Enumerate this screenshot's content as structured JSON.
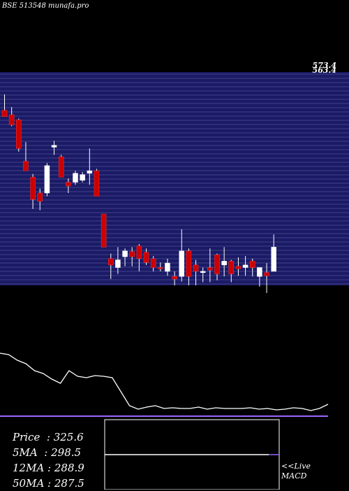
{
  "header": {
    "ticker": "BSE 513548",
    "site": "munafa.pro"
  },
  "stats": {
    "price_label": "Price",
    "price": "325.6",
    "ma5_label": "5MA",
    "ma5": "298.5",
    "ma12_label": "12MA",
    "ma12": "288.9",
    "ma50_label": "50MA",
    "ma50": "287.5"
  },
  "macd_label": {
    "line1": "<<Live",
    "line2": "MACD"
  },
  "colors": {
    "background": "#000000",
    "price_band": "#1a1a66",
    "grid_line": "#6a6aa8",
    "up_candle": "#ffffff",
    "down_candle": "#cc0000",
    "indicator_line": "#ffffff",
    "ma_line": "#9966ff",
    "macd_box_border": "#ffffff"
  },
  "chart_data": {
    "type": "candlestick",
    "y_scale": "price",
    "ylim": [
      240,
      575
    ],
    "top_labels": [
      "573.4",
      "563.4"
    ],
    "candles": [
      {
        "o": 515,
        "h": 540,
        "l": 505,
        "c": 505,
        "dir": "down"
      },
      {
        "o": 508,
        "h": 520,
        "l": 490,
        "c": 492,
        "dir": "down"
      },
      {
        "o": 500,
        "h": 502,
        "l": 450,
        "c": 455,
        "dir": "down"
      },
      {
        "o": 435,
        "h": 465,
        "l": 420,
        "c": 420,
        "dir": "down"
      },
      {
        "o": 410,
        "h": 415,
        "l": 360,
        "c": 375,
        "dir": "down"
      },
      {
        "o": 385,
        "h": 392,
        "l": 358,
        "c": 372,
        "dir": "down"
      },
      {
        "o": 385,
        "h": 432,
        "l": 380,
        "c": 428,
        "dir": "up"
      },
      {
        "o": 457,
        "h": 467,
        "l": 445,
        "c": 460,
        "dir": "up"
      },
      {
        "o": 442,
        "h": 445,
        "l": 410,
        "c": 410,
        "dir": "down"
      },
      {
        "o": 402,
        "h": 408,
        "l": 385,
        "c": 396,
        "dir": "down"
      },
      {
        "o": 402,
        "h": 420,
        "l": 398,
        "c": 416,
        "dir": "up"
      },
      {
        "o": 405,
        "h": 418,
        "l": 402,
        "c": 414,
        "dir": "up"
      },
      {
        "o": 420,
        "h": 455,
        "l": 398,
        "c": 416,
        "dir": "up"
      },
      {
        "o": 420,
        "h": 423,
        "l": 380,
        "c": 380,
        "dir": "down"
      },
      {
        "o": 352,
        "h": 352,
        "l": 300,
        "c": 300,
        "dir": "down"
      },
      {
        "o": 282,
        "h": 290,
        "l": 250,
        "c": 272,
        "dir": "down"
      },
      {
        "o": 268,
        "h": 300,
        "l": 258,
        "c": 280,
        "dir": "up"
      },
      {
        "o": 285,
        "h": 298,
        "l": 270,
        "c": 294,
        "dir": "up"
      },
      {
        "o": 293,
        "h": 300,
        "l": 270,
        "c": 285,
        "dir": "down"
      },
      {
        "o": 302,
        "h": 305,
        "l": 262,
        "c": 282,
        "dir": "down"
      },
      {
        "o": 292,
        "h": 298,
        "l": 272,
        "c": 276,
        "dir": "down"
      },
      {
        "o": 282,
        "h": 286,
        "l": 262,
        "c": 268,
        "dir": "down"
      },
      {
        "o": 266,
        "h": 276,
        "l": 262,
        "c": 268,
        "dir": "down"
      },
      {
        "o": 262,
        "h": 282,
        "l": 255,
        "c": 275,
        "dir": "up"
      },
      {
        "o": 254,
        "h": 262,
        "l": 240,
        "c": 250,
        "dir": "down"
      },
      {
        "o": 254,
        "h": 328,
        "l": 246,
        "c": 294,
        "dir": "up"
      },
      {
        "o": 294,
        "h": 298,
        "l": 240,
        "c": 254,
        "dir": "down"
      },
      {
        "o": 262,
        "h": 280,
        "l": 240,
        "c": 272,
        "dir": "down"
      },
      {
        "o": 260,
        "h": 268,
        "l": 245,
        "c": 262,
        "dir": "up"
      },
      {
        "o": 268,
        "h": 298,
        "l": 245,
        "c": 264,
        "dir": "down"
      },
      {
        "o": 288,
        "h": 290,
        "l": 248,
        "c": 258,
        "dir": "down"
      },
      {
        "o": 272,
        "h": 300,
        "l": 254,
        "c": 278,
        "dir": "up"
      },
      {
        "o": 278,
        "h": 280,
        "l": 245,
        "c": 258,
        "dir": "down"
      },
      {
        "o": 266,
        "h": 284,
        "l": 255,
        "c": 270,
        "dir": "down"
      },
      {
        "o": 268,
        "h": 286,
        "l": 255,
        "c": 272,
        "dir": "up"
      },
      {
        "o": 278,
        "h": 282,
        "l": 254,
        "c": 268,
        "dir": "down"
      },
      {
        "o": 268,
        "h": 268,
        "l": 238,
        "c": 254,
        "dir": "up"
      },
      {
        "o": 260,
        "h": 275,
        "l": 228,
        "c": 255,
        "dir": "down"
      },
      {
        "o": 262,
        "h": 320,
        "l": 262,
        "c": 300,
        "dir": "up"
      }
    ],
    "indicator": {
      "white_line": [
        0.95,
        0.93,
        0.85,
        0.8,
        0.7,
        0.66,
        0.58,
        0.52,
        0.7,
        0.62,
        0.6,
        0.63,
        0.62,
        0.6,
        0.4,
        0.2,
        0.15,
        0.18,
        0.2,
        0.16,
        0.17,
        0.16,
        0.16,
        0.18,
        0.15,
        0.17,
        0.16,
        0.16,
        0.16,
        0.17,
        0.15,
        0.16,
        0.14,
        0.15,
        0.17,
        0.16,
        0.13,
        0.16,
        0.22
      ],
      "purple_line": [
        0.05,
        0.05,
        0.05,
        0.05,
        0.05,
        0.05,
        0.05,
        0.05,
        0.05,
        0.05,
        0.05,
        0.05,
        0.05,
        0.05,
        0.05,
        0.05,
        0.05,
        0.05,
        0.05,
        0.05,
        0.05,
        0.05,
        0.05,
        0.05,
        0.05,
        0.05,
        0.05,
        0.05,
        0.05,
        0.05,
        0.05,
        0.05,
        0.05,
        0.05,
        0.05,
        0.05,
        0.05,
        0.05,
        0.05
      ]
    },
    "macd": {
      "level": 0.5
    }
  }
}
